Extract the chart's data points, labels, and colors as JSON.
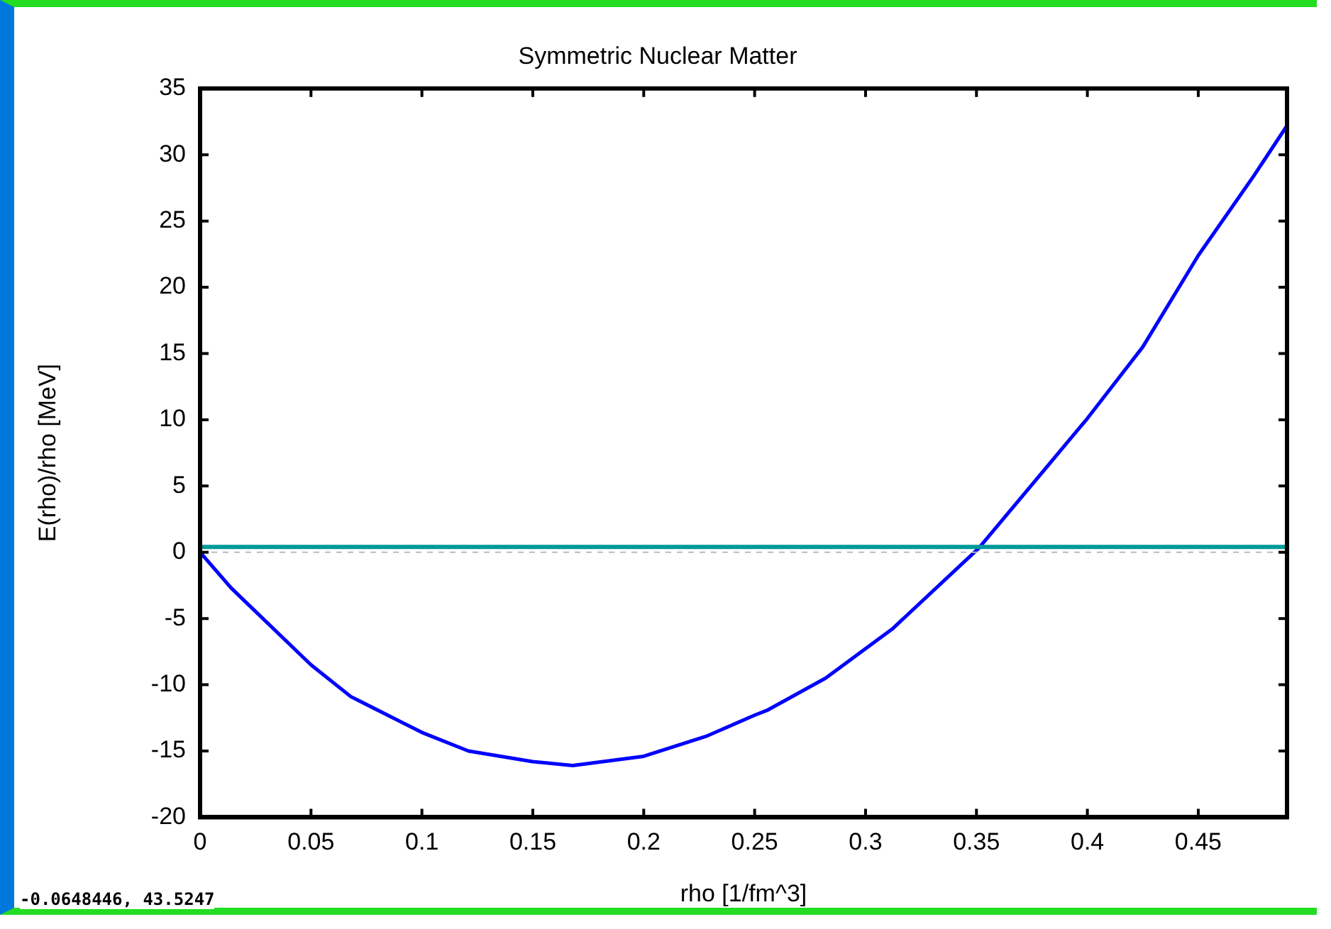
{
  "chart_data": {
    "type": "line",
    "title": "Symmetric Nuclear Matter",
    "xlabel": "rho [1/fm^3]",
    "ylabel": "E(rho)/rho [MeV]",
    "series": [
      {
        "color": "#0000ff",
        "x": [
          0,
          0.014,
          0.05,
          0.068,
          0.1,
          0.121,
          0.15,
          0.168,
          0.2,
          0.228,
          0.25,
          0.256,
          0.282,
          0.312,
          0.351,
          0.383,
          0.4,
          0.425,
          0.45,
          0.475,
          0.49
        ],
        "values": [
          0,
          -2.7,
          -8.5,
          -10.9,
          -13.6,
          -15.0,
          -15.8,
          -16.1,
          -15.4,
          -13.9,
          -12.3,
          -11.9,
          -9.5,
          -5.8,
          0.3,
          6.7,
          10.1,
          15.5,
          22.4,
          28.4,
          32.2
        ]
      }
    ],
    "ref_lines": [
      {
        "axis": "y",
        "value": 0.4,
        "color": "#009999",
        "line_style": "solid"
      },
      {
        "axis": "y",
        "value": 0,
        "color": "#bbbbbb",
        "line_style": "dashed"
      }
    ],
    "xlim": [
      0,
      0.49
    ],
    "xticks": [
      0,
      0.05,
      0.1,
      0.15,
      0.2,
      0.25,
      0.3,
      0.35,
      0.4,
      0.45
    ],
    "ylim": [
      -20,
      35
    ],
    "yticks": [
      -20,
      -15,
      -10,
      -5,
      0,
      5,
      10,
      15,
      20,
      25,
      30,
      35
    ],
    "grid": false,
    "legend": false,
    "marker": "none",
    "line_style": "solid",
    "annotations": [
      "-0.0648446, 43.5247"
    ]
  }
}
